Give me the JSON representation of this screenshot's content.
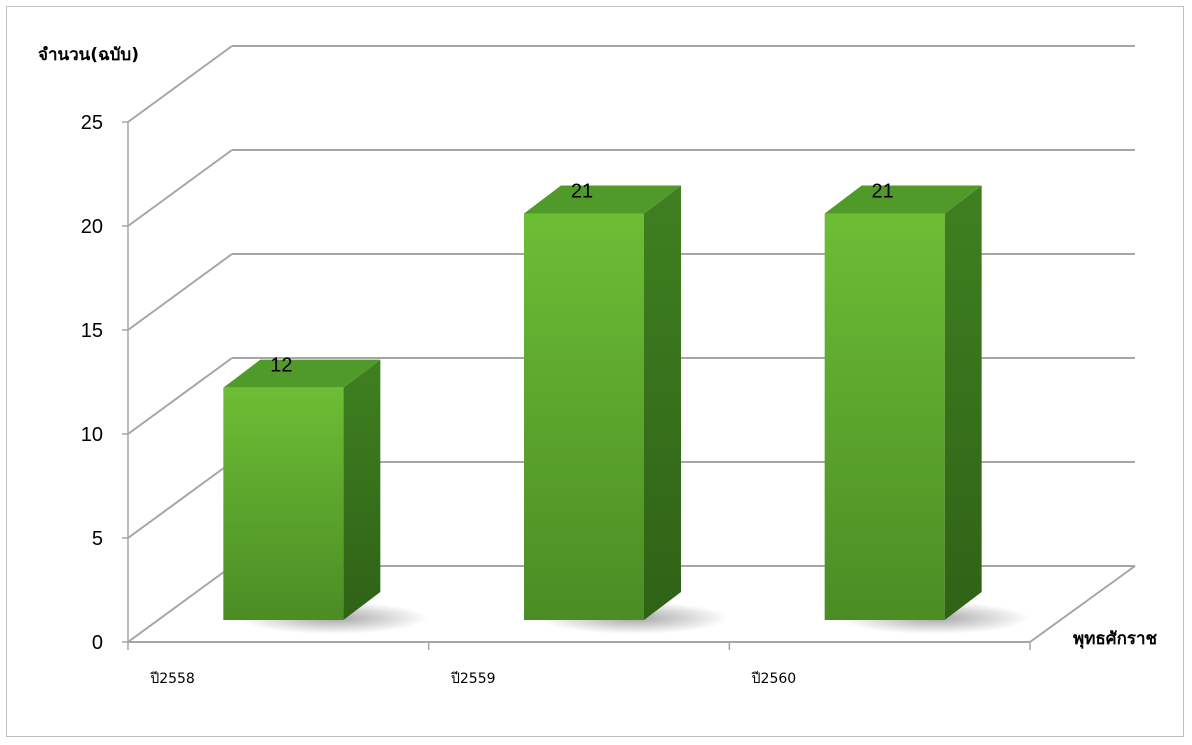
{
  "chart_data": {
    "type": "bar",
    "categories": [
      "ปี2558",
      "ปี2559",
      "ปี2560"
    ],
    "values": [
      12,
      21,
      21
    ],
    "data_labels": [
      "12",
      "21",
      "21"
    ],
    "title": "",
    "ylabel": "จำนวน(ฉบับ)",
    "xlabel": "พุทธศักราช",
    "ylim": [
      0,
      25
    ],
    "yticks": [
      0,
      5,
      10,
      15,
      20,
      25
    ],
    "ytick_labels": [
      "0",
      "5",
      "10",
      "15",
      "20",
      "25"
    ],
    "grid": true,
    "style": "3d-column",
    "colors": {
      "bar_front_light": "#6dbd35",
      "bar_front_dark": "#3e7d1d",
      "bar_side": "#3b7a1c",
      "bar_top": "#4f9a28",
      "grid": "#a6a6a6"
    }
  }
}
